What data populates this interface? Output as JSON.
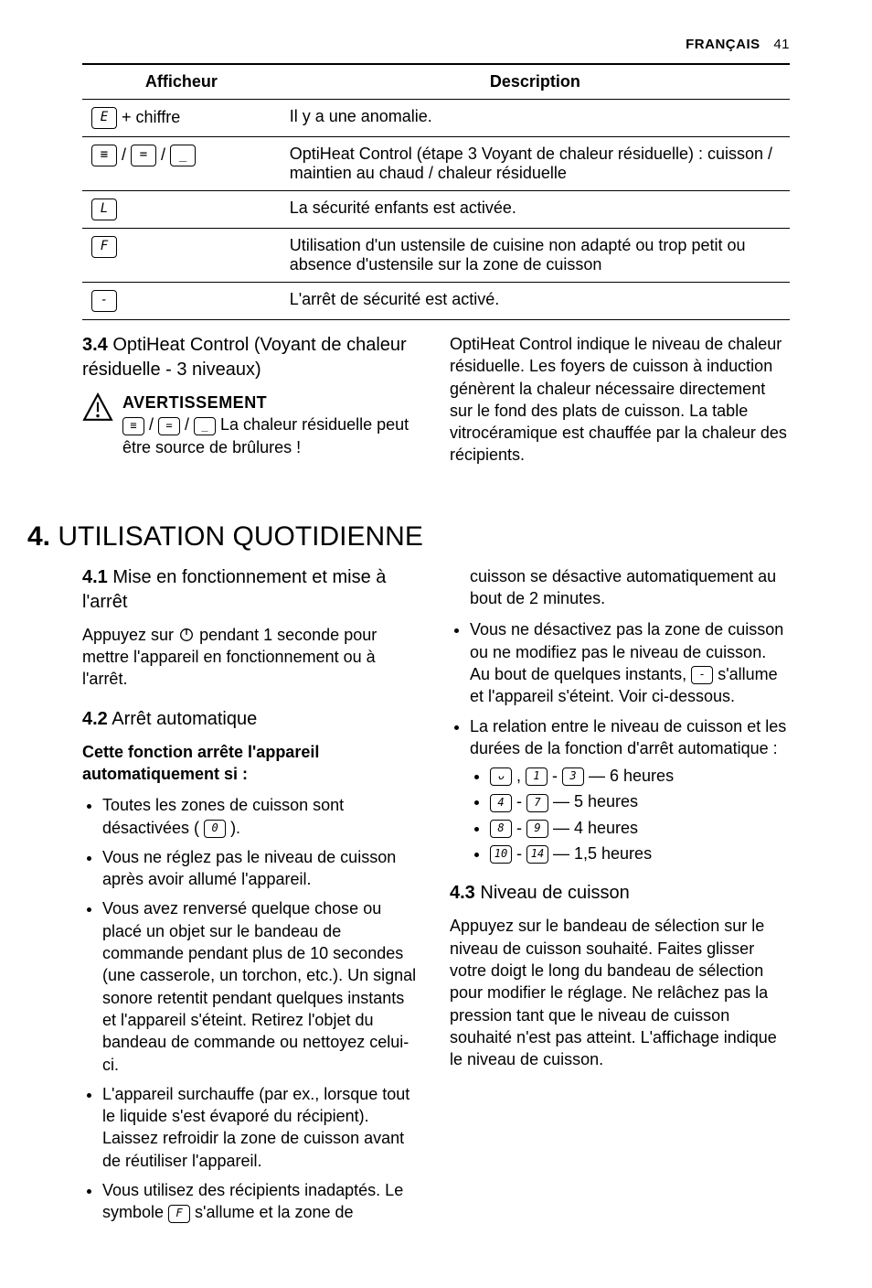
{
  "header": {
    "language": "FRANÇAIS",
    "page_number": "41"
  },
  "table": {
    "columns": [
      "Afficheur",
      "Description"
    ],
    "rows": [
      {
        "glyphs": [
          "E"
        ],
        "suffix": " + chiffre",
        "desc": "Il y a une anomalie."
      },
      {
        "glyphs": [
          "≡",
          "=",
          "_"
        ],
        "joiner": " / ",
        "suffix": "",
        "desc": "OptiHeat Control (étape 3 Voyant de chaleur résiduelle) : cuisson / maintien au chaud / chaleur résiduelle"
      },
      {
        "glyphs": [
          "L"
        ],
        "suffix": "",
        "desc": "La sécurité enfants est activée."
      },
      {
        "glyphs": [
          "F"
        ],
        "suffix": "",
        "desc": "Utilisation d'un ustensile de cuisine non adapté ou trop petit ou absence d'ustensile sur la zone de cuisson"
      },
      {
        "glyphs": [
          "-"
        ],
        "suffix": "",
        "desc": "L'arrêt de sécurité est activé."
      }
    ]
  },
  "s34": {
    "number": "3.4",
    "title": "OptiHeat Control (Voyant de chaleur résiduelle - 3 niveaux)",
    "warn_title": "AVERTISSEMENT",
    "warn_glyphs": [
      "≡",
      "=",
      "_"
    ],
    "warn_joiner": " / ",
    "warn_text_after": " La chaleur résiduelle peut être source de brûlures !",
    "right_para": "OptiHeat Control indique le niveau de chaleur résiduelle. Les foyers de cuisson à induction génèrent la chaleur nécessaire directement sur le fond des plats de cuisson. La table vitrocéramique est chauffée par la chaleur des récipients."
  },
  "chapter4": {
    "number": "4.",
    "title": "UTILISATION QUOTIDIENNE"
  },
  "s41": {
    "number": "4.1",
    "title": "Mise en fonctionnement et mise à l'arrêt",
    "para_before": "Appuyez sur ",
    "para_after": " pendant 1 seconde pour mettre l'appareil en fonctionnement ou à l'arrêt."
  },
  "s42": {
    "number": "4.2",
    "title": "Arrêt automatique",
    "lead": "Cette fonction arrête l'appareil automatiquement si :",
    "b1_before": "Toutes les zones de cuisson sont désactivées ( ",
    "b1_glyph": "0",
    "b1_after": " ).",
    "b2": "Vous ne réglez pas le niveau de cuisson après avoir allumé l'appareil.",
    "b3": "Vous avez renversé quelque chose ou placé un objet sur le bandeau de commande pendant plus de 10 secondes (une casserole, un torchon, etc.). Un signal sonore retentit pendant quelques instants et l'appareil s'éteint. Retirez l'objet du bandeau de commande ou nettoyez celui-ci.",
    "b4": "L'appareil surchauffe (par ex., lorsque tout le liquide s'est évaporé du récipient). Laissez refroidir la zone de cuisson avant de réutiliser l'appareil.",
    "b5_before": "Vous utilisez des récipients inadaptés. Le symbole ",
    "b5_glyph": "F",
    "b5_after": " s'allume et la zone de ",
    "b5_cont": "cuisson se désactive automatiquement au bout de 2 minutes.",
    "b6_before": "Vous ne désactivez pas la zone de cuisson ou ne modifiez pas le niveau de cuisson. Au bout de quelques instants, ",
    "b6_glyph": "-",
    "b6_after": " s'allume et l'appareil s'éteint. Voir ci-dessous.",
    "b7_lead": "La relation entre le niveau de cuisson et les durées de la fonction d'arrêt automatique :",
    "durations": [
      {
        "glyphs": [
          "ᴗ",
          "1",
          "3"
        ],
        "pattern": "triplet",
        "text": " — 6 heures"
      },
      {
        "glyphs": [
          "4",
          "7"
        ],
        "pattern": "pair",
        "text": " — 5 heures"
      },
      {
        "glyphs": [
          "8",
          "9"
        ],
        "pattern": "pair",
        "text": " — 4 heures"
      },
      {
        "glyphs": [
          "10",
          "14"
        ],
        "pattern": "pair",
        "text": " — 1,5 heures"
      }
    ]
  },
  "s43": {
    "number": "4.3",
    "title": "Niveau de cuisson",
    "para": "Appuyez sur le bandeau de sélection sur le niveau de cuisson souhaité. Faites glisser votre doigt le long du bandeau de sélection pour modifier le réglage. Ne relâchez pas la pression tant que le niveau de cuisson souhaité n'est pas atteint. L'affichage indique le niveau de cuisson."
  }
}
